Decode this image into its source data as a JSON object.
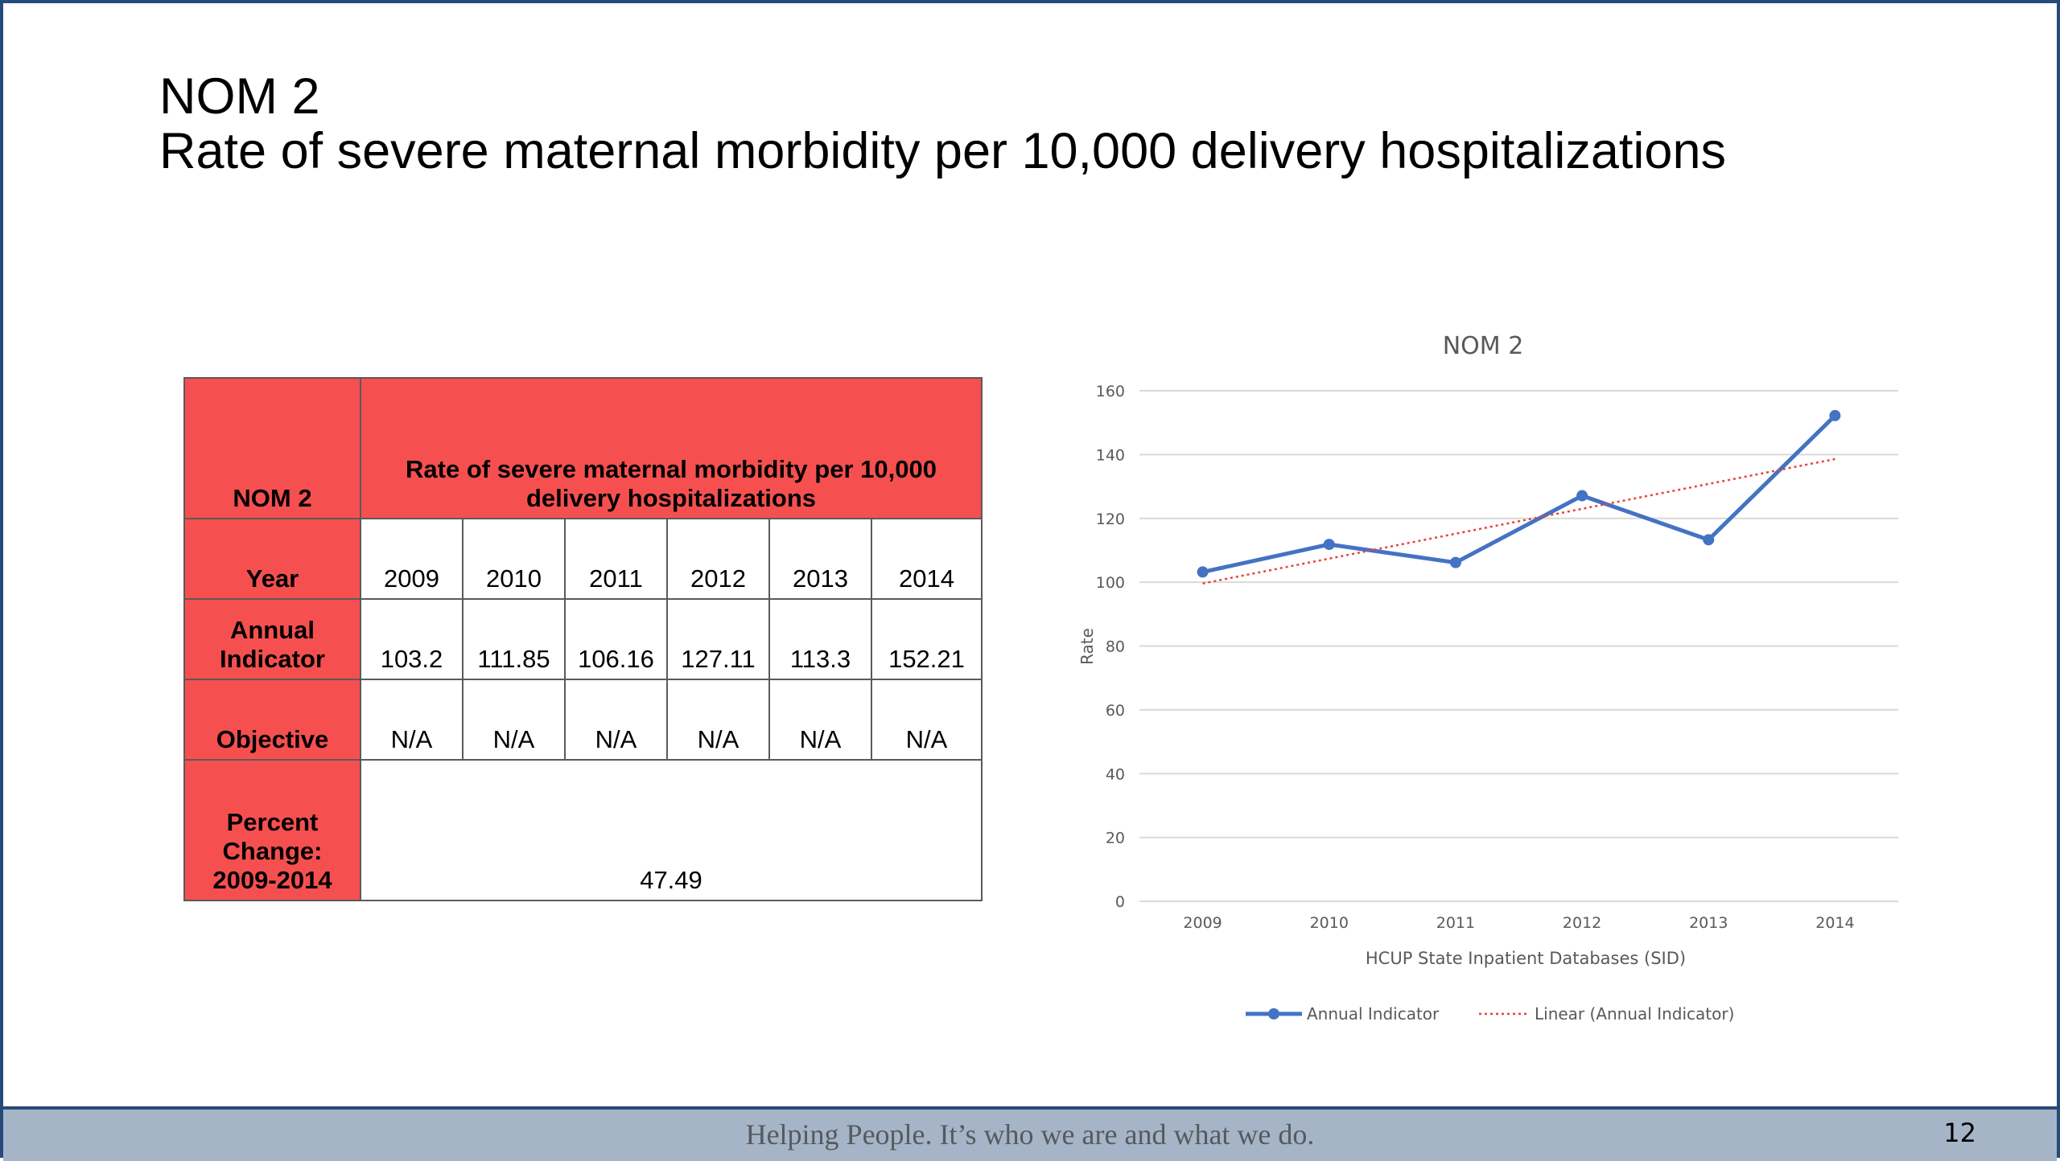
{
  "slide": {
    "title_line1": "NOM 2",
    "title_line2": "Rate of severe maternal morbidity per 10,000 delivery hospitalizations",
    "footer_text": "Helping People.  It’s who we are and what we do.",
    "page_number": "12"
  },
  "table": {
    "header_left": "NOM 2",
    "header_right": "Rate of severe maternal morbidity per 10,000 delivery hospitalizations",
    "row_year_label": "Year",
    "years": [
      "2009",
      "2010",
      "2011",
      "2012",
      "2013",
      "2014"
    ],
    "row_annual_label": "Annual Indicator",
    "annual": [
      "103.2",
      "111.85",
      "106.16",
      "127.11",
      "113.3",
      "152.21"
    ],
    "row_objective_label": "Objective",
    "objective": [
      "N/A",
      "N/A",
      "N/A",
      "N/A",
      "N/A",
      "N/A"
    ],
    "row_percent_label": "Percent Change: 2009-2014",
    "percent_change": "47.49"
  },
  "chart_data": {
    "type": "line",
    "title": "NOM 2",
    "xlabel": "HCUP State Inpatient Databases (SID)",
    "ylabel": "Rate",
    "categories": [
      "2009",
      "2010",
      "2011",
      "2012",
      "2013",
      "2014"
    ],
    "ylim": [
      0,
      160
    ],
    "yticks": [
      0,
      20,
      40,
      60,
      80,
      100,
      120,
      140,
      160
    ],
    "grid": true,
    "legend_position": "bottom",
    "series": [
      {
        "name": "Annual Indicator",
        "values": [
          103.2,
          111.85,
          106.16,
          127.11,
          113.3,
          152.21
        ],
        "color": "#4472c4",
        "style": "solid-markers"
      },
      {
        "name": "Linear (Annual Indicator)",
        "values": [
          99.6,
          107.4,
          115.2,
          123.0,
          130.8,
          138.6
        ],
        "color": "#e8413a",
        "style": "dotted"
      }
    ]
  }
}
